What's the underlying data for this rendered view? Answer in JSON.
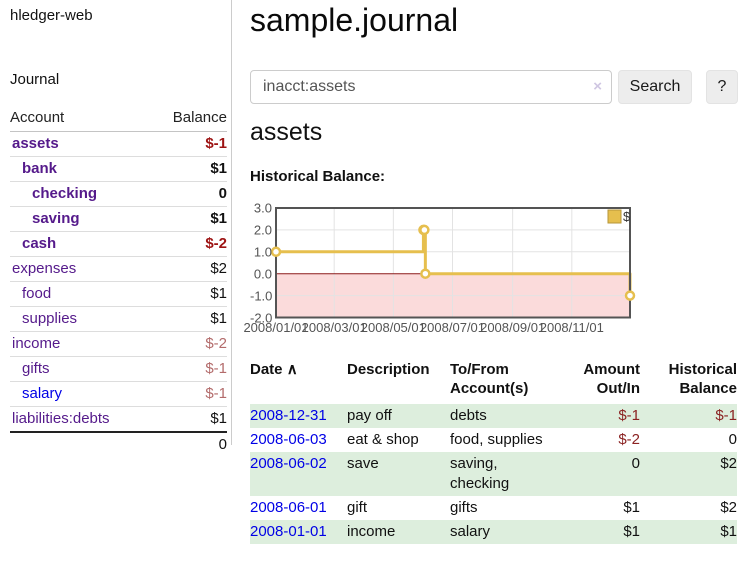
{
  "colors": {
    "link_purple": "#551a8b",
    "link_blue": "#0000e6",
    "neg_strong": "#9d1313",
    "neg_muted": "#b36b6b",
    "neg_table": "#8b2222",
    "row_green": "#ddeedd",
    "chart_gold": "#e6bf4e",
    "chart_gold_border": "#b6963a",
    "chart_pink": "#fbdbdb",
    "chart_zero": "#8b1a1a",
    "grid": "#e3e3e3",
    "chart_border": "#545454"
  },
  "sidebar": {
    "brand": "hledger-web",
    "journal_label": "Journal",
    "accounts_header": {
      "account": "Account",
      "balance": "Balance"
    },
    "accounts": [
      {
        "name": "assets",
        "depth": 1,
        "bold": true,
        "balance": "$-1",
        "balance_style": "neg-strong",
        "name_style": "purple"
      },
      {
        "name": "bank",
        "depth": 2,
        "bold": true,
        "balance": "$1",
        "balance_style": "default",
        "name_style": "purple"
      },
      {
        "name": "checking",
        "depth": 3,
        "bold": true,
        "balance": "0",
        "balance_style": "default",
        "name_style": "purple"
      },
      {
        "name": "saving",
        "depth": 3,
        "bold": true,
        "balance": "$1",
        "balance_style": "default",
        "name_style": "purple"
      },
      {
        "name": "cash",
        "depth": 2,
        "bold": true,
        "balance": "$-2",
        "balance_style": "neg-strong",
        "name_style": "purple"
      },
      {
        "name": "expenses",
        "depth": 1,
        "bold": false,
        "balance": "$2",
        "balance_style": "default",
        "name_style": "purple"
      },
      {
        "name": "food",
        "depth": 2,
        "bold": false,
        "balance": "$1",
        "balance_style": "default",
        "name_style": "purple"
      },
      {
        "name": "supplies",
        "depth": 2,
        "bold": false,
        "balance": "$1",
        "balance_style": "default",
        "name_style": "purple"
      },
      {
        "name": "income",
        "depth": 1,
        "bold": false,
        "balance": "$-2",
        "balance_style": "neg-muted",
        "name_style": "purple"
      },
      {
        "name": "gifts",
        "depth": 2,
        "bold": false,
        "balance": "$-1",
        "balance_style": "neg-muted",
        "name_style": "purple"
      },
      {
        "name": "salary",
        "depth": 2,
        "bold": false,
        "balance": "$-1",
        "balance_style": "neg-muted",
        "name_style": "blue"
      },
      {
        "name": "liabilities:debts",
        "depth": 1,
        "bold": false,
        "balance": "$1",
        "balance_style": "default",
        "name_style": "purple"
      }
    ],
    "total": "0"
  },
  "main": {
    "title": "sample.journal",
    "search": {
      "value": "inacct:assets",
      "clear_icon": "×",
      "button_label": "Search",
      "help_label": "?"
    },
    "account_heading": "assets",
    "chart_label": "Historical Balance:"
  },
  "register": {
    "sort_icon": "∧",
    "columns": [
      {
        "label": "Date"
      },
      {
        "label": "Description"
      },
      {
        "label": "To/From\nAccount(s)"
      },
      {
        "label": "Amount\nOut/In"
      },
      {
        "label": "Historical\nBalance"
      }
    ],
    "rows": [
      {
        "date": "2008-12-31",
        "description": "pay off",
        "accounts": "debts",
        "amount": "$-1",
        "amount_neg": true,
        "balance": "$-1",
        "balance_neg": true
      },
      {
        "date": "2008-06-03",
        "description": "eat & shop",
        "accounts": "food, supplies",
        "amount": "$-2",
        "amount_neg": true,
        "balance": "0",
        "balance_neg": false
      },
      {
        "date": "2008-06-02",
        "description": "save",
        "accounts": "saving, checking",
        "amount": "0",
        "amount_neg": false,
        "balance": "$2",
        "balance_neg": false
      },
      {
        "date": "2008-06-01",
        "description": "gift",
        "accounts": "gifts",
        "amount": "$1",
        "amount_neg": false,
        "balance": "$2",
        "balance_neg": false
      },
      {
        "date": "2008-01-01",
        "description": "income",
        "accounts": "salary",
        "amount": "$1",
        "amount_neg": false,
        "balance": "$1",
        "balance_neg": false
      }
    ]
  },
  "chart_data": {
    "type": "line",
    "title": "Historical Balance",
    "legend": {
      "label": "$",
      "position": "top-right"
    },
    "xlim": [
      "2008-01-01",
      "2008-12-31"
    ],
    "ylim": [
      -2,
      3
    ],
    "grid": true,
    "negative_region_shaded": true,
    "yticks": [
      {
        "value": 3,
        "label": "3.0"
      },
      {
        "value": 2,
        "label": "2.0"
      },
      {
        "value": 1,
        "label": "1.0"
      },
      {
        "value": 0,
        "label": "0.0"
      },
      {
        "value": -1,
        "label": "-1.0"
      },
      {
        "value": -2,
        "label": "-2.0"
      }
    ],
    "xticks": [
      {
        "date": "2008-01-01",
        "label": "2008/01/01"
      },
      {
        "date": "2008-03-01",
        "label": "2008/03/01"
      },
      {
        "date": "2008-05-01",
        "label": "2008/05/01"
      },
      {
        "date": "2008-07-01",
        "label": "2008/07/01"
      },
      {
        "date": "2008-09-01",
        "label": "2008/09/01"
      },
      {
        "date": "2008-11-01",
        "label": "2008/11/01"
      }
    ],
    "series": [
      {
        "name": "$",
        "step": true,
        "points": [
          [
            "2008-01-01",
            1
          ],
          [
            "2008-06-01",
            2
          ],
          [
            "2008-06-02",
            2
          ],
          [
            "2008-06-03",
            0
          ],
          [
            "2008-12-31",
            -1
          ]
        ]
      }
    ]
  }
}
